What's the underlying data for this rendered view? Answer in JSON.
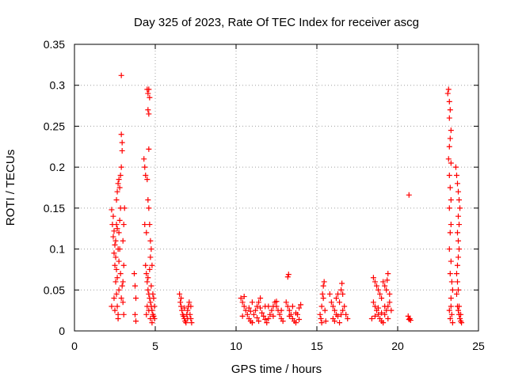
{
  "chart_data": {
    "type": "scatter",
    "title": "Day 325 of 2023, Rate Of TEC Index for receiver ascg",
    "xlabel": "GPS time / hours",
    "ylabel": "ROTI / TECUs",
    "xlim": [
      0,
      25
    ],
    "ylim": [
      0,
      0.35
    ],
    "xticks": [
      0,
      5,
      10,
      15,
      20,
      25
    ],
    "xtick_labels": [
      "0",
      "5",
      "10",
      "15",
      "20",
      "25"
    ],
    "yticks": [
      0,
      0.05,
      0.1,
      0.15,
      0.2,
      0.25,
      0.3,
      0.35
    ],
    "ytick_labels": [
      "0",
      "0.05",
      "0.1",
      "0.15",
      "0.2",
      "0.25",
      "0.3",
      "0.35"
    ],
    "grid": true,
    "marker": "+",
    "marker_color": "#ff0000",
    "series": [
      {
        "points": [
          [
            2.3,
            0.148
          ],
          [
            2.35,
            0.13
          ],
          [
            2.4,
            0.115
          ],
          [
            2.45,
            0.095
          ],
          [
            2.5,
            0.08
          ],
          [
            2.55,
            0.06
          ],
          [
            2.6,
            0.045
          ],
          [
            2.65,
            0.03
          ],
          [
            2.7,
            0.02
          ],
          [
            2.75,
            0.05
          ],
          [
            2.4,
            0.14
          ],
          [
            2.45,
            0.122
          ],
          [
            2.5,
            0.105
          ],
          [
            2.55,
            0.09
          ],
          [
            2.6,
            0.075
          ],
          [
            2.65,
            0.065
          ],
          [
            2.7,
            0.1
          ],
          [
            2.75,
            0.12
          ],
          [
            2.8,
            0.135
          ],
          [
            2.85,
            0.15
          ],
          [
            2.6,
            0.16
          ],
          [
            2.65,
            0.17
          ],
          [
            2.7,
            0.18
          ],
          [
            2.75,
            0.185
          ],
          [
            2.8,
            0.175
          ],
          [
            2.85,
            0.19
          ],
          [
            2.9,
            0.2
          ],
          [
            2.95,
            0.22
          ],
          [
            2.9,
            0.24
          ],
          [
            2.95,
            0.23
          ],
          [
            2.9,
            0.312
          ],
          [
            2.3,
            0.03
          ],
          [
            2.5,
            0.025
          ],
          [
            2.7,
            0.015
          ],
          [
            2.9,
            0.04
          ],
          [
            3.0,
            0.06
          ],
          [
            3.05,
            0.08
          ],
          [
            3.0,
            0.11
          ],
          [
            3.05,
            0.13
          ],
          [
            3.1,
            0.15
          ],
          [
            2.45,
            0.04
          ],
          [
            2.55,
            0.11
          ],
          [
            2.65,
            0.125
          ],
          [
            2.75,
            0.085
          ],
          [
            2.85,
            0.07
          ],
          [
            2.95,
            0.055
          ],
          [
            3.0,
            0.035
          ],
          [
            3.05,
            0.02
          ],
          [
            2.8,
            0.1
          ],
          [
            2.6,
            0.13
          ],
          [
            3.7,
            0.07
          ],
          [
            3.75,
            0.055
          ],
          [
            3.8,
            0.04
          ],
          [
            3.75,
            0.02
          ],
          [
            3.8,
            0.012
          ],
          [
            4.3,
            0.21
          ],
          [
            4.35,
            0.2
          ],
          [
            4.4,
            0.19
          ],
          [
            4.5,
            0.185
          ],
          [
            4.55,
            0.16
          ],
          [
            4.6,
            0.15
          ],
          [
            4.65,
            0.13
          ],
          [
            4.7,
            0.11
          ],
          [
            4.75,
            0.1
          ],
          [
            4.5,
            0.295
          ],
          [
            4.55,
            0.29
          ],
          [
            4.6,
            0.295
          ],
          [
            4.65,
            0.285
          ],
          [
            4.55,
            0.27
          ],
          [
            4.6,
            0.265
          ],
          [
            4.6,
            0.222
          ],
          [
            4.4,
            0.08
          ],
          [
            4.45,
            0.07
          ],
          [
            4.5,
            0.06
          ],
          [
            4.55,
            0.05
          ],
          [
            4.6,
            0.045
          ],
          [
            4.65,
            0.04
          ],
          [
            4.7,
            0.035
          ],
          [
            4.75,
            0.03
          ],
          [
            4.8,
            0.025
          ],
          [
            4.85,
            0.02
          ],
          [
            4.9,
            0.018
          ],
          [
            4.95,
            0.015
          ],
          [
            4.5,
            0.03
          ],
          [
            4.6,
            0.025
          ],
          [
            4.7,
            0.015
          ],
          [
            4.8,
            0.01
          ],
          [
            4.9,
            0.04
          ],
          [
            4.95,
            0.03
          ],
          [
            4.45,
            0.02
          ],
          [
            4.55,
            0.065
          ],
          [
            4.65,
            0.075
          ],
          [
            4.75,
            0.055
          ],
          [
            4.85,
            0.045
          ],
          [
            4.7,
            0.09
          ],
          [
            4.8,
            0.08
          ],
          [
            4.35,
            0.13
          ],
          [
            4.45,
            0.12
          ],
          [
            6.5,
            0.045
          ],
          [
            6.55,
            0.035
          ],
          [
            6.6,
            0.03
          ],
          [
            6.65,
            0.025
          ],
          [
            6.7,
            0.02
          ],
          [
            6.75,
            0.018
          ],
          [
            6.8,
            0.015
          ],
          [
            6.85,
            0.012
          ],
          [
            6.9,
            0.01
          ],
          [
            6.95,
            0.02
          ],
          [
            7.0,
            0.025
          ],
          [
            7.05,
            0.03
          ],
          [
            7.1,
            0.035
          ],
          [
            7.15,
            0.02
          ],
          [
            7.2,
            0.015
          ],
          [
            7.25,
            0.01
          ],
          [
            6.6,
            0.04
          ],
          [
            6.8,
            0.028
          ],
          [
            7.0,
            0.015
          ],
          [
            7.2,
            0.03
          ],
          [
            10.3,
            0.04
          ],
          [
            10.4,
            0.035
          ],
          [
            10.5,
            0.03
          ],
          [
            10.6,
            0.025
          ],
          [
            10.7,
            0.02
          ],
          [
            10.8,
            0.015
          ],
          [
            10.9,
            0.012
          ],
          [
            11.0,
            0.01
          ],
          [
            11.1,
            0.02
          ],
          [
            11.2,
            0.025
          ],
          [
            11.3,
            0.03
          ],
          [
            11.4,
            0.035
          ],
          [
            11.5,
            0.028
          ],
          [
            11.6,
            0.022
          ],
          [
            11.7,
            0.018
          ],
          [
            11.8,
            0.014
          ],
          [
            11.9,
            0.01
          ],
          [
            12.0,
            0.015
          ],
          [
            12.1,
            0.02
          ],
          [
            12.2,
            0.025
          ],
          [
            12.3,
            0.03
          ],
          [
            12.4,
            0.035
          ],
          [
            12.5,
            0.03
          ],
          [
            12.6,
            0.025
          ],
          [
            12.7,
            0.02
          ],
          [
            12.8,
            0.015
          ],
          [
            12.9,
            0.012
          ],
          [
            10.5,
            0.042
          ],
          [
            11.0,
            0.035
          ],
          [
            11.5,
            0.04
          ],
          [
            12.0,
            0.03
          ],
          [
            12.5,
            0.036
          ],
          [
            10.8,
            0.028
          ],
          [
            11.3,
            0.016
          ],
          [
            11.8,
            0.03
          ],
          [
            12.3,
            0.018
          ],
          [
            12.8,
            0.025
          ],
          [
            10.4,
            0.018
          ],
          [
            10.9,
            0.024
          ],
          [
            11.4,
            0.012
          ],
          [
            13.2,
            0.066
          ],
          [
            13.25,
            0.069
          ],
          [
            13.1,
            0.035
          ],
          [
            13.2,
            0.03
          ],
          [
            13.3,
            0.025
          ],
          [
            13.4,
            0.02
          ],
          [
            13.5,
            0.015
          ],
          [
            13.6,
            0.012
          ],
          [
            13.7,
            0.01
          ],
          [
            13.8,
            0.02
          ],
          [
            13.9,
            0.028
          ],
          [
            14.0,
            0.032
          ],
          [
            13.3,
            0.018
          ],
          [
            13.5,
            0.03
          ],
          [
            13.7,
            0.022
          ],
          [
            13.9,
            0.014
          ],
          [
            15.2,
            0.02
          ],
          [
            15.25,
            0.015
          ],
          [
            15.3,
            0.03
          ],
          [
            15.35,
            0.045
          ],
          [
            15.4,
            0.055
          ],
          [
            15.45,
            0.06
          ],
          [
            15.4,
            0.04
          ],
          [
            15.5,
            0.025
          ],
          [
            15.55,
            0.012
          ],
          [
            15.3,
            0.01
          ],
          [
            15.8,
            0.045
          ],
          [
            15.9,
            0.035
          ],
          [
            16.0,
            0.03
          ],
          [
            16.1,
            0.025
          ],
          [
            16.2,
            0.04
          ],
          [
            16.3,
            0.045
          ],
          [
            16.4,
            0.035
          ],
          [
            16.5,
            0.05
          ],
          [
            16.55,
            0.058
          ],
          [
            16.6,
            0.045
          ],
          [
            16.7,
            0.03
          ],
          [
            16.8,
            0.02
          ],
          [
            16.9,
            0.015
          ],
          [
            16.0,
            0.015
          ],
          [
            16.2,
            0.02
          ],
          [
            16.4,
            0.01
          ],
          [
            16.6,
            0.025
          ],
          [
            16.1,
            0.012
          ],
          [
            16.3,
            0.018
          ],
          [
            16.5,
            0.02
          ],
          [
            18.5,
            0.065
          ],
          [
            18.6,
            0.06
          ],
          [
            18.7,
            0.055
          ],
          [
            18.8,
            0.05
          ],
          [
            18.9,
            0.045
          ],
          [
            19.0,
            0.04
          ],
          [
            19.1,
            0.06
          ],
          [
            19.2,
            0.055
          ],
          [
            19.3,
            0.05
          ],
          [
            19.4,
            0.07
          ],
          [
            18.5,
            0.035
          ],
          [
            18.6,
            0.03
          ],
          [
            18.7,
            0.025
          ],
          [
            18.8,
            0.02
          ],
          [
            18.9,
            0.015
          ],
          [
            19.0,
            0.012
          ],
          [
            19.1,
            0.01
          ],
          [
            19.2,
            0.02
          ],
          [
            19.3,
            0.025
          ],
          [
            19.4,
            0.03
          ],
          [
            19.5,
            0.035
          ],
          [
            19.6,
            0.025
          ],
          [
            18.4,
            0.015
          ],
          [
            18.6,
            0.018
          ],
          [
            18.8,
            0.028
          ],
          [
            19.0,
            0.022
          ],
          [
            19.2,
            0.03
          ],
          [
            19.4,
            0.015
          ],
          [
            19.5,
            0.045
          ],
          [
            19.35,
            0.062
          ],
          [
            20.7,
            0.166
          ],
          [
            20.65,
            0.018
          ],
          [
            20.7,
            0.014
          ],
          [
            20.75,
            0.015
          ],
          [
            20.8,
            0.013
          ],
          [
            23.1,
            0.29
          ],
          [
            23.15,
            0.295
          ],
          [
            23.2,
            0.28
          ],
          [
            23.25,
            0.27
          ],
          [
            23.2,
            0.26
          ],
          [
            23.3,
            0.245
          ],
          [
            23.25,
            0.235
          ],
          [
            23.2,
            0.225
          ],
          [
            23.15,
            0.21
          ],
          [
            23.3,
            0.205
          ],
          [
            23.2,
            0.19
          ],
          [
            23.25,
            0.175
          ],
          [
            23.3,
            0.16
          ],
          [
            23.2,
            0.15
          ],
          [
            23.3,
            0.13
          ],
          [
            23.25,
            0.12
          ],
          [
            23.2,
            0.1
          ],
          [
            23.3,
            0.085
          ],
          [
            23.25,
            0.07
          ],
          [
            23.3,
            0.03
          ],
          [
            23.2,
            0.025
          ],
          [
            23.35,
            0.02
          ],
          [
            23.25,
            0.015
          ],
          [
            23.4,
            0.01
          ],
          [
            23.3,
            0.04
          ],
          [
            23.4,
            0.05
          ],
          [
            23.35,
            0.06
          ],
          [
            23.6,
            0.2
          ],
          [
            23.65,
            0.19
          ],
          [
            23.7,
            0.18
          ],
          [
            23.75,
            0.17
          ],
          [
            23.8,
            0.16
          ],
          [
            23.85,
            0.15
          ],
          [
            23.75,
            0.14
          ],
          [
            23.8,
            0.13
          ],
          [
            23.7,
            0.12
          ],
          [
            23.75,
            0.11
          ],
          [
            23.8,
            0.1
          ],
          [
            23.75,
            0.09
          ],
          [
            23.7,
            0.08
          ],
          [
            23.65,
            0.07
          ],
          [
            23.7,
            0.06
          ],
          [
            23.75,
            0.05
          ],
          [
            23.65,
            0.045
          ],
          [
            23.7,
            0.03
          ],
          [
            23.75,
            0.025
          ],
          [
            23.8,
            0.02
          ],
          [
            23.85,
            0.015
          ],
          [
            23.9,
            0.012
          ],
          [
            23.95,
            0.01
          ],
          [
            23.8,
            0.03
          ],
          [
            23.9,
            0.02
          ]
        ]
      }
    ]
  }
}
